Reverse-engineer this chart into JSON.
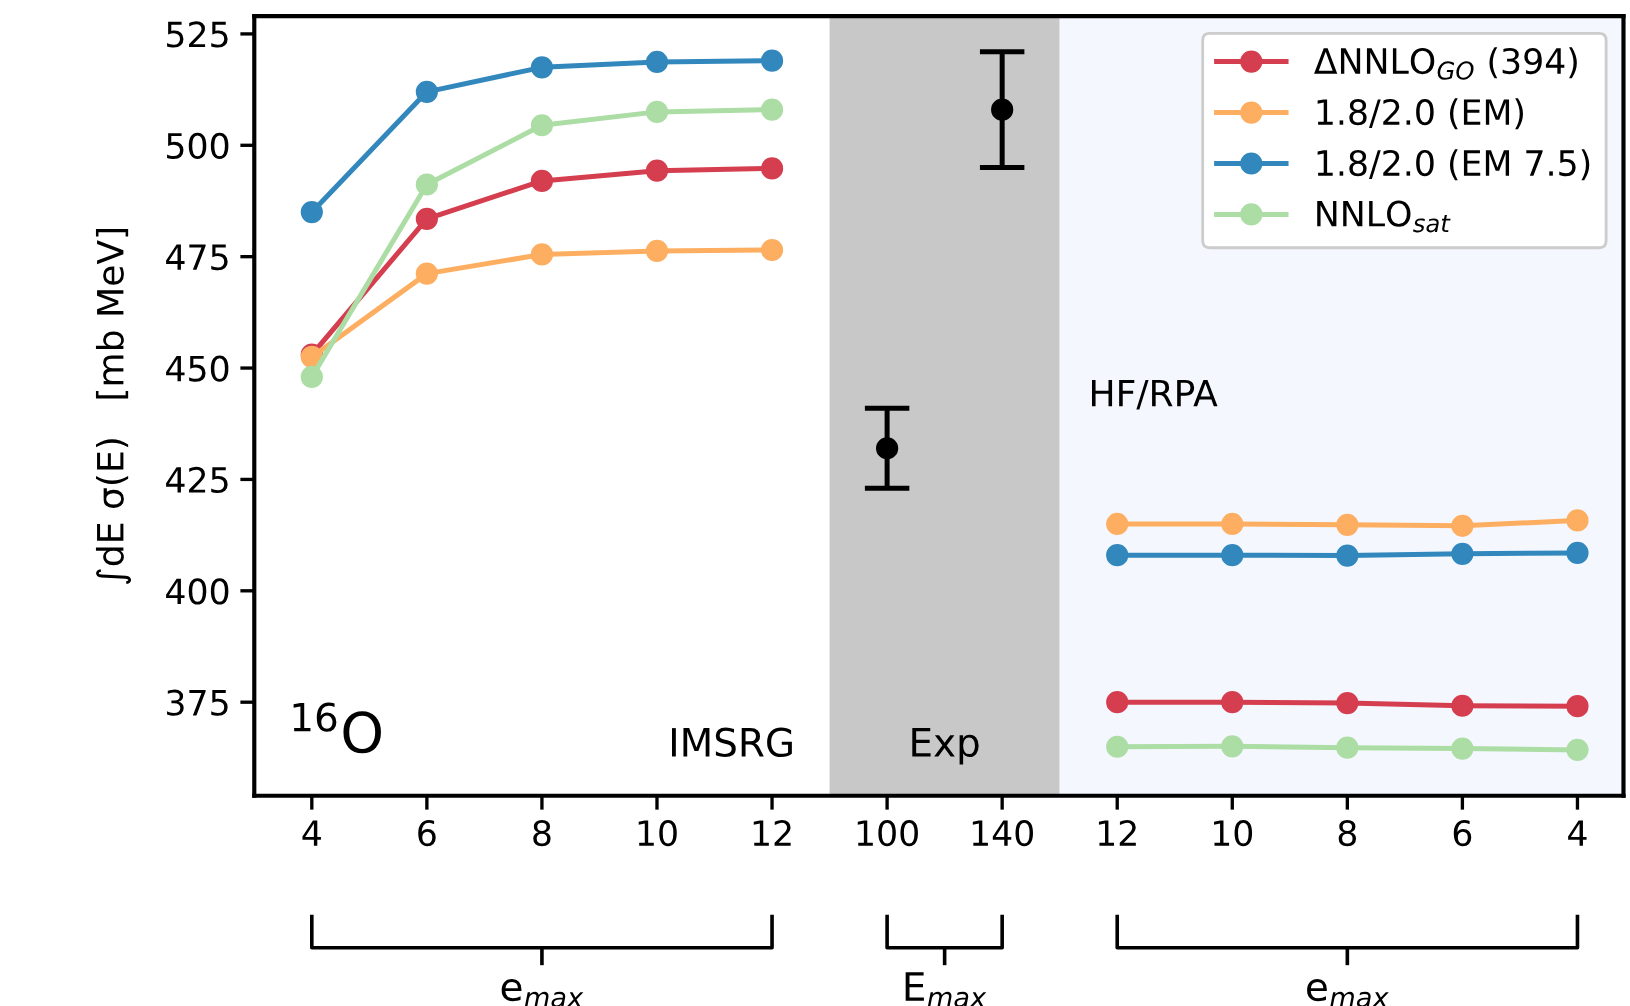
{
  "chart_data": {
    "type": "line",
    "categories": [
      "4",
      "6",
      "8",
      "10",
      "12",
      "100",
      "140",
      "12",
      "10",
      "8",
      "6",
      "4"
    ],
    "ylabel": "∫dE σ(E)   [mb MeV]",
    "ylim": [
      354,
      529
    ],
    "yticks": [
      375,
      400,
      425,
      450,
      475,
      500,
      525
    ],
    "series": [
      {
        "name": "ΔNNLO$_{GO}$ (394)",
        "color": "#d53e4f",
        "values": [
          453,
          483.5,
          492,
          494.3,
          494.8,
          null,
          null,
          375,
          375,
          374.8,
          374.2,
          374.1
        ]
      },
      {
        "name": "1.8/2.0 (EM)",
        "color": "#fdae61",
        "values": [
          452.5,
          471.2,
          475.5,
          476.3,
          476.5,
          null,
          null,
          415,
          415,
          414.8,
          414.6,
          415.8
        ]
      },
      {
        "name": "1.8/2.0 (EM 7.5)",
        "color": "#3288bd",
        "values": [
          485,
          512,
          517.5,
          518.7,
          519,
          null,
          null,
          408,
          408,
          407.9,
          408.3,
          408.5
        ]
      },
      {
        "name": "NNLO$_{sat}$",
        "color": "#abdda4",
        "values": [
          448,
          491.2,
          504.5,
          507.5,
          508,
          null,
          null,
          365,
          365.1,
          364.8,
          364.6,
          364.3
        ]
      },
      {
        "type": "scatter",
        "color": "#000000",
        "values": [
          null,
          null,
          null,
          null,
          null,
          432,
          508,
          null,
          null,
          null,
          null,
          null
        ],
        "errors": [
          null,
          null,
          null,
          null,
          null,
          9,
          13,
          null,
          null,
          null,
          null,
          null
        ]
      }
    ],
    "bands": [
      {
        "axis": "x",
        "from": "100",
        "to": "140",
        "label": "Exp",
        "color": "#c8c8c8"
      }
    ],
    "annotations": [
      "$^{16}$O",
      "IMSRG",
      "e$_{max}$",
      "E$_{max}$",
      "e$_{max}$",
      "HF/RPA"
    ],
    "marker": "circle",
    "line_style": "solid",
    "grid": false,
    "legend": "top right"
  }
}
